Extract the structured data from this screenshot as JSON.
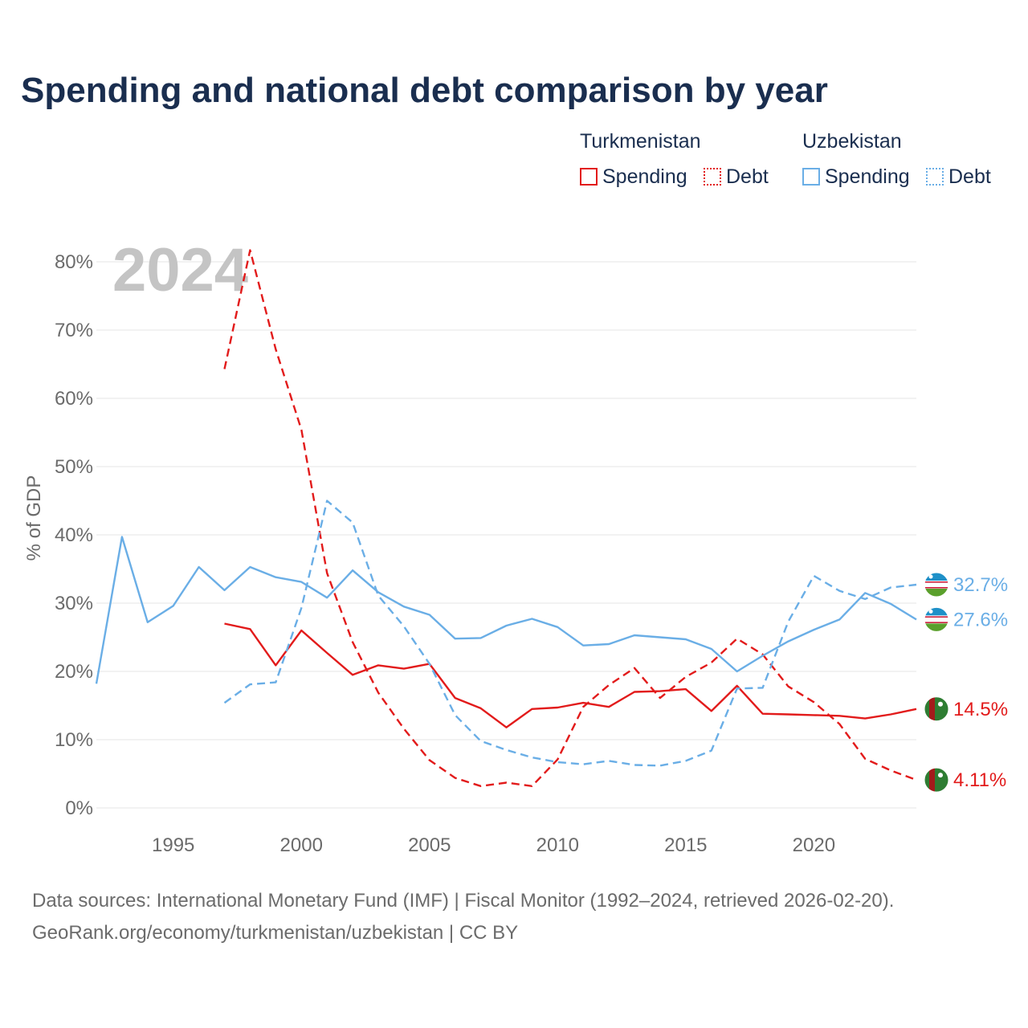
{
  "title": "Spending and national debt comparison by year",
  "legend": {
    "groups": [
      {
        "country": "Turkmenistan",
        "spending": "Spending",
        "debt": "Debt"
      },
      {
        "country": "Uzbekistan",
        "spending": "Spending",
        "debt": "Debt"
      }
    ]
  },
  "colors": {
    "turkmenistan": "#e21b1b",
    "uzbekistan": "#6aaee6",
    "title": "#1a2e4f"
  },
  "chart_data": {
    "type": "line",
    "title": "Spending and national debt comparison by year",
    "ylabel": "% of GDP",
    "xlabel": "",
    "xlim": [
      1992,
      2024
    ],
    "ylim": [
      0,
      80
    ],
    "year_label": "2024",
    "yticks": [
      0,
      10,
      20,
      30,
      40,
      50,
      60,
      70,
      80
    ],
    "ytick_labels": [
      "0%",
      "10%",
      "20%",
      "30%",
      "40%",
      "50%",
      "60%",
      "70%",
      "80%"
    ],
    "xticks": [
      1995,
      2000,
      2005,
      2010,
      2015,
      2020
    ],
    "xtick_labels": [
      "1995",
      "2000",
      "2005",
      "2010",
      "2015",
      "2020"
    ],
    "grid": true,
    "legend_position": "top-right",
    "series": [
      {
        "name": "Turkmenistan Spending",
        "country": "Turkmenistan",
        "color": "#e21b1b",
        "style": "solid",
        "x": [
          1997,
          1998,
          1999,
          2000,
          2001,
          2002,
          2003,
          2004,
          2005,
          2006,
          2007,
          2008,
          2009,
          2010,
          2011,
          2012,
          2013,
          2014,
          2015,
          2016,
          2017,
          2018,
          2019,
          2020,
          2021,
          2022,
          2023,
          2024
        ],
        "y": [
          27.0,
          26.2,
          20.9,
          26.0,
          22.7,
          19.5,
          20.9,
          20.4,
          21.1,
          16.1,
          14.6,
          11.8,
          14.5,
          14.7,
          15.4,
          14.8,
          17.0,
          17.1,
          17.4,
          14.2,
          17.9,
          13.8,
          13.7,
          13.6,
          13.5,
          13.1,
          13.7,
          14.5
        ],
        "end_label": "14.5%"
      },
      {
        "name": "Turkmenistan Debt",
        "country": "Turkmenistan",
        "color": "#e21b1b",
        "style": "dashed",
        "x": [
          1997,
          1998,
          1999,
          2000,
          2001,
          2002,
          2003,
          2004,
          2005,
          2006,
          2007,
          2008,
          2009,
          2010,
          2011,
          2012,
          2013,
          2014,
          2015,
          2016,
          2017,
          2018,
          2019,
          2020,
          2021,
          2022,
          2023,
          2024
        ],
        "y": [
          64.3,
          81.7,
          67.2,
          55.4,
          34.4,
          24.3,
          16.9,
          11.6,
          7.0,
          4.4,
          3.2,
          3.7,
          3.2,
          7.1,
          14.8,
          18.0,
          20.5,
          16.1,
          19.2,
          21.3,
          24.8,
          22.5,
          17.8,
          15.5,
          12.3,
          7.2,
          5.5,
          4.11
        ],
        "end_label": "4.11%"
      },
      {
        "name": "Uzbekistan Spending",
        "country": "Uzbekistan",
        "color": "#6aaee6",
        "style": "solid",
        "x": [
          1992,
          1993,
          1994,
          1995,
          1996,
          1997,
          1998,
          1999,
          2000,
          2001,
          2002,
          2003,
          2004,
          2005,
          2006,
          2007,
          2008,
          2009,
          2010,
          2011,
          2012,
          2013,
          2014,
          2015,
          2016,
          2017,
          2018,
          2019,
          2020,
          2021,
          2022,
          2023,
          2024
        ],
        "y": [
          18.2,
          39.7,
          27.2,
          29.6,
          35.3,
          31.9,
          35.3,
          33.8,
          33.1,
          30.8,
          34.8,
          31.6,
          29.5,
          28.3,
          24.8,
          24.9,
          26.7,
          27.7,
          26.5,
          23.8,
          24.0,
          25.3,
          25.0,
          24.7,
          23.3,
          20.0,
          22.3,
          24.4,
          26.1,
          27.6,
          31.5,
          29.9,
          27.6
        ],
        "end_label": "27.6%"
      },
      {
        "name": "Uzbekistan Debt",
        "country": "Uzbekistan",
        "color": "#6aaee6",
        "style": "dashed",
        "x": [
          1997,
          1998,
          1999,
          2000,
          2001,
          2002,
          2003,
          2004,
          2005,
          2006,
          2007,
          2008,
          2009,
          2010,
          2011,
          2012,
          2013,
          2014,
          2015,
          2016,
          2017,
          2018,
          2019,
          2020,
          2021,
          2022,
          2023,
          2024
        ],
        "y": [
          15.4,
          18.1,
          18.4,
          29.3,
          45.0,
          41.8,
          31.1,
          26.6,
          21.1,
          13.6,
          9.8,
          8.5,
          7.4,
          6.7,
          6.4,
          6.9,
          6.3,
          6.2,
          6.9,
          8.4,
          17.5,
          17.6,
          27.3,
          34.0,
          31.8,
          30.6,
          32.3,
          32.7
        ],
        "end_label": "32.7%"
      }
    ]
  },
  "footer": {
    "line1": "Data sources: International Monetary Fund (IMF) | Fiscal Monitor (1992–2024, retrieved 2026-02-20).",
    "line2": "GeoRank.org/economy/turkmenistan/uzbekistan | CC BY"
  }
}
